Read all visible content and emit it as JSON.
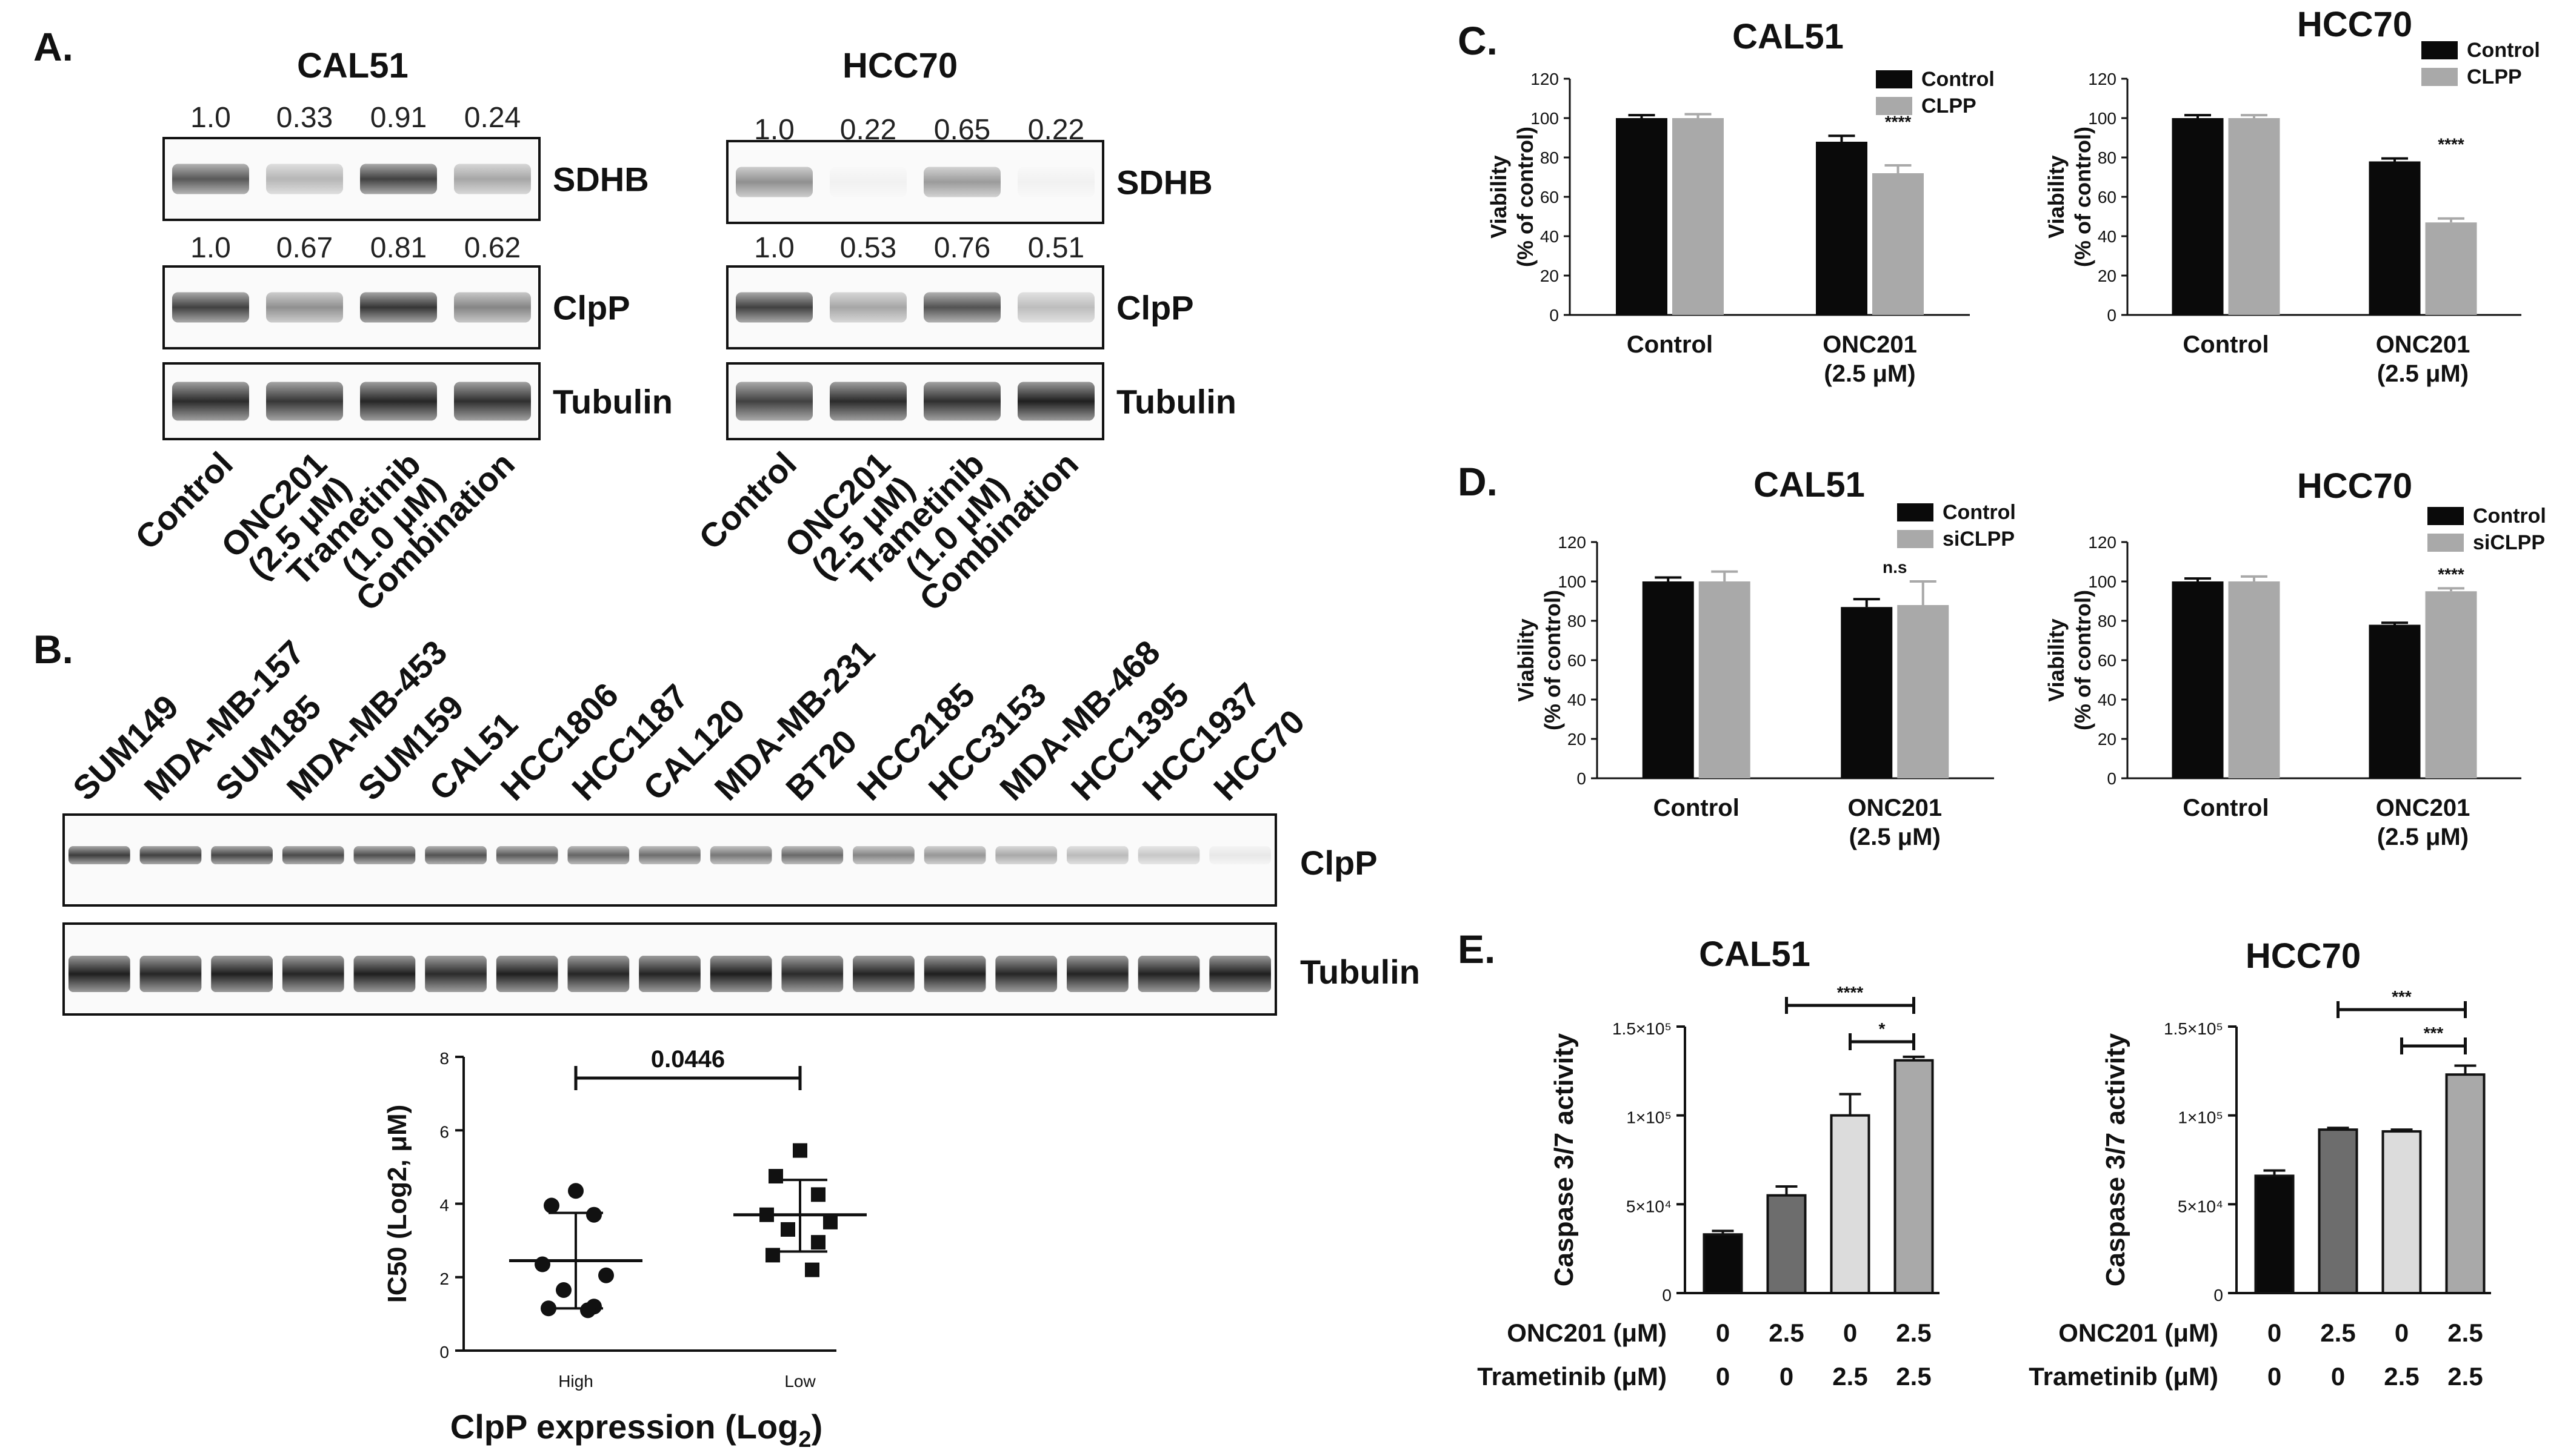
{
  "panelA": {
    "label": "A.",
    "cal51": {
      "title": "CAL51",
      "sdhb_values": [
        "1.0",
        "0.33",
        "0.91",
        "0.24"
      ],
      "clpp_values": [
        "1.0",
        "0.67",
        "0.81",
        "0.62"
      ],
      "rows": [
        "SDHB",
        "ClpP",
        "Tubulin"
      ]
    },
    "hcc70": {
      "title": "HCC70",
      "sdhb_values": [
        "1.0",
        "0.22",
        "0.65",
        "0.22"
      ],
      "clpp_values": [
        "1.0",
        "0.53",
        "0.76",
        "0.51"
      ],
      "rows": [
        "SDHB",
        "ClpP",
        "Tubulin"
      ]
    },
    "treatments": [
      {
        "line1": "Control",
        "line2": ""
      },
      {
        "line1": "ONC201",
        "line2": "(2.5 μM)"
      },
      {
        "line1": "Trametinib",
        "line2": "(1.0 μM)"
      },
      {
        "line1": "Combination",
        "line2": ""
      }
    ],
    "band_intensity": {
      "cal51_sdhb": [
        0.7,
        0.28,
        0.8,
        0.35
      ],
      "cal51_clpp": [
        0.8,
        0.45,
        0.85,
        0.5
      ],
      "cal51_tubulin": [
        0.9,
        0.85,
        0.92,
        0.88
      ],
      "hcc70_sdhb": [
        0.45,
        0.02,
        0.4,
        0.02
      ],
      "hcc70_clpp": [
        0.8,
        0.35,
        0.72,
        0.25
      ],
      "hcc70_tubulin": [
        0.8,
        0.9,
        0.88,
        0.95
      ]
    }
  },
  "panelB": {
    "label": "B.",
    "cell_lines": [
      "SUM149",
      "MDA-MB-157",
      "SUM185",
      "MDA-MB-453",
      "SUM159",
      "CAL51",
      "HCC1806",
      "HCC1187",
      "CAL120",
      "MDA-MB-231",
      "BT20",
      "HCC2185",
      "HCC3153",
      "MDA-MB-468",
      "HCC1395",
      "HCC1937",
      "HCC70"
    ],
    "rows": [
      "ClpP",
      "Tubulin"
    ],
    "clpp_intensity": [
      0.82,
      0.8,
      0.78,
      0.76,
      0.74,
      0.72,
      0.68,
      0.64,
      0.6,
      0.56,
      0.62,
      0.5,
      0.42,
      0.34,
      0.26,
      0.2,
      0.06
    ],
    "tubulin_intensity": [
      0.95,
      0.92,
      0.95,
      0.92,
      0.95,
      0.9,
      0.95,
      0.92,
      0.93,
      0.96,
      0.9,
      0.93,
      0.95,
      0.92,
      0.93,
      0.94,
      0.95
    ]
  },
  "colors": {
    "black_bar": "#0a0a0a",
    "grey_bar": "#a9a9a9",
    "dark_grey_bar": "#6d6d6d",
    "light_grey_bar": "#dcdcdc"
  },
  "chart_data": [
    {
      "id": "b-scatter",
      "type": "scatter",
      "title": "",
      "xlabel": "ClpP expression (Log",
      "xlabel_sub": "2",
      "xlabel_end": ")",
      "ylabel": "IC50 (Log2, μM)",
      "ylim": [
        0,
        8
      ],
      "yticks": [
        "0",
        "2",
        "4",
        "6",
        "8"
      ],
      "categories": [
        "High",
        "Low"
      ],
      "series": [
        {
          "name": "High",
          "marker": "circle",
          "values": [
            4.35,
            3.95,
            3.7,
            2.35,
            2.05,
            1.65,
            1.2,
            1.15,
            1.1
          ],
          "mean": 2.45,
          "sd_low": 1.15,
          "sd_high": 3.75
        },
        {
          "name": "Low",
          "marker": "square",
          "values": [
            5.45,
            4.75,
            4.25,
            3.7,
            3.5,
            3.3,
            2.95,
            2.6,
            2.2
          ],
          "mean": 3.7,
          "sd_low": 2.7,
          "sd_high": 4.65
        }
      ],
      "pvalue": "0.0446"
    },
    {
      "id": "c-cal51",
      "type": "bar",
      "title": "CAL51",
      "ylabel": "Viability",
      "ylabel2": "(% of control)",
      "ylim": [
        0,
        120
      ],
      "yticks": [
        "0",
        "20",
        "40",
        "60",
        "80",
        "100",
        "120"
      ],
      "categories": [
        {
          "line1": "Control",
          "line2": ""
        },
        {
          "line1": "ONC201",
          "line2": "(2.5 μM)"
        }
      ],
      "series": [
        {
          "name": "Control",
          "values": [
            100,
            88
          ],
          "err": [
            1.5,
            3
          ]
        },
        {
          "name": "CLPP",
          "values": [
            100,
            72
          ],
          "err": [
            2,
            4
          ]
        }
      ],
      "annotations": [
        {
          "text": "****",
          "cat": 1,
          "series": 1
        }
      ]
    },
    {
      "id": "c-hcc70",
      "type": "bar",
      "title": "HCC70",
      "ylabel": "Viability",
      "ylabel2": "(% of control)",
      "ylim": [
        0,
        120
      ],
      "yticks": [
        "0",
        "20",
        "40",
        "60",
        "80",
        "100",
        "120"
      ],
      "categories": [
        {
          "line1": "Control",
          "line2": ""
        },
        {
          "line1": "ONC201",
          "line2": "(2.5 μM)"
        }
      ],
      "series": [
        {
          "name": "Control",
          "values": [
            100,
            78
          ],
          "err": [
            1.5,
            1.5
          ]
        },
        {
          "name": "CLPP",
          "values": [
            100,
            47
          ],
          "err": [
            1.5,
            2
          ]
        }
      ],
      "annotations": [
        {
          "text": "****",
          "cat": 1,
          "series": 1
        }
      ]
    },
    {
      "id": "d-cal51",
      "type": "bar",
      "title": "CAL51",
      "ylabel": "Viability",
      "ylabel2": "(% of control)",
      "ylim": [
        0,
        120
      ],
      "yticks": [
        "0",
        "20",
        "40",
        "60",
        "80",
        "100",
        "120"
      ],
      "categories": [
        {
          "line1": "Control",
          "line2": ""
        },
        {
          "line1": "ONC201",
          "line2": "(2.5 μM)"
        }
      ],
      "series": [
        {
          "name": "Control",
          "values": [
            100,
            87
          ],
          "err": [
            2,
            4
          ]
        },
        {
          "name": "siCLPP",
          "values": [
            100,
            88
          ],
          "err": [
            5,
            12
          ]
        }
      ],
      "annotations": [
        {
          "text": "n.s",
          "cat": 1,
          "series": 0.5
        }
      ]
    },
    {
      "id": "d-hcc70",
      "type": "bar",
      "title": "HCC70",
      "ylabel": "Viability",
      "ylabel2": "(% of control)",
      "ylim": [
        0,
        120
      ],
      "yticks": [
        "0",
        "20",
        "40",
        "60",
        "80",
        "100",
        "120"
      ],
      "categories": [
        {
          "line1": "Control",
          "line2": ""
        },
        {
          "line1": "ONC201",
          "line2": "(2.5 μM)"
        }
      ],
      "series": [
        {
          "name": "Control",
          "values": [
            100,
            78
          ],
          "err": [
            1.5,
            1
          ]
        },
        {
          "name": "siCLPP",
          "values": [
            100,
            95
          ],
          "err": [
            2.5,
            1.5
          ]
        }
      ],
      "annotations": [
        {
          "text": "****",
          "cat": 1,
          "series": 1
        }
      ]
    },
    {
      "id": "e-cal51",
      "type": "bar",
      "title": "CAL51",
      "ylabel": "Caspase 3/7 activity",
      "ylim": [
        0,
        150000
      ],
      "yticks": [
        {
          "v": 0,
          "t": "0"
        },
        {
          "v": 50000,
          "t": "5×10⁴"
        },
        {
          "v": 100000,
          "t": "1×10⁵"
        },
        {
          "v": 150000,
          "t": "1.5×10⁵"
        }
      ],
      "values": [
        33000,
        55000,
        100000,
        131000
      ],
      "err": [
        2000,
        5000,
        12000,
        2000
      ],
      "rows": [
        {
          "label": "ONC201 (μM)",
          "values": [
            "0",
            "2.5",
            "0",
            "2.5"
          ]
        },
        {
          "label": "Trametinib (μM)",
          "values": [
            "0",
            "0",
            "2.5",
            "2.5"
          ]
        }
      ],
      "brackets": [
        {
          "from": 1,
          "to": 3,
          "text": "****",
          "level": 0
        },
        {
          "from": 2,
          "to": 3,
          "text": "*",
          "level": 1
        }
      ]
    },
    {
      "id": "e-hcc70",
      "type": "bar",
      "title": "HCC70",
      "ylabel": "Caspase 3/7 activity",
      "ylim": [
        0,
        150000
      ],
      "yticks": [
        {
          "v": 0,
          "t": "0"
        },
        {
          "v": 50000,
          "t": "5×10⁴"
        },
        {
          "v": 100000,
          "t": "1×10⁵"
        },
        {
          "v": 150000,
          "t": "1.5×10⁵"
        }
      ],
      "values": [
        66000,
        92000,
        91000,
        123000
      ],
      "err": [
        3000,
        1000,
        1000,
        5000
      ],
      "rows": [
        {
          "label": "ONC201 (μM)",
          "values": [
            "0",
            "2.5",
            "0",
            "2.5"
          ]
        },
        {
          "label": "Trametinib (μM)",
          "values": [
            "0",
            "0",
            "2.5",
            "2.5"
          ]
        }
      ],
      "brackets": [
        {
          "from": 1,
          "to": 3,
          "text": "***",
          "level": 0
        },
        {
          "from": 2,
          "to": 3,
          "text": "***",
          "level": 1
        }
      ]
    }
  ],
  "panel_labels": {
    "c": "C.",
    "d": "D.",
    "e": "E."
  }
}
